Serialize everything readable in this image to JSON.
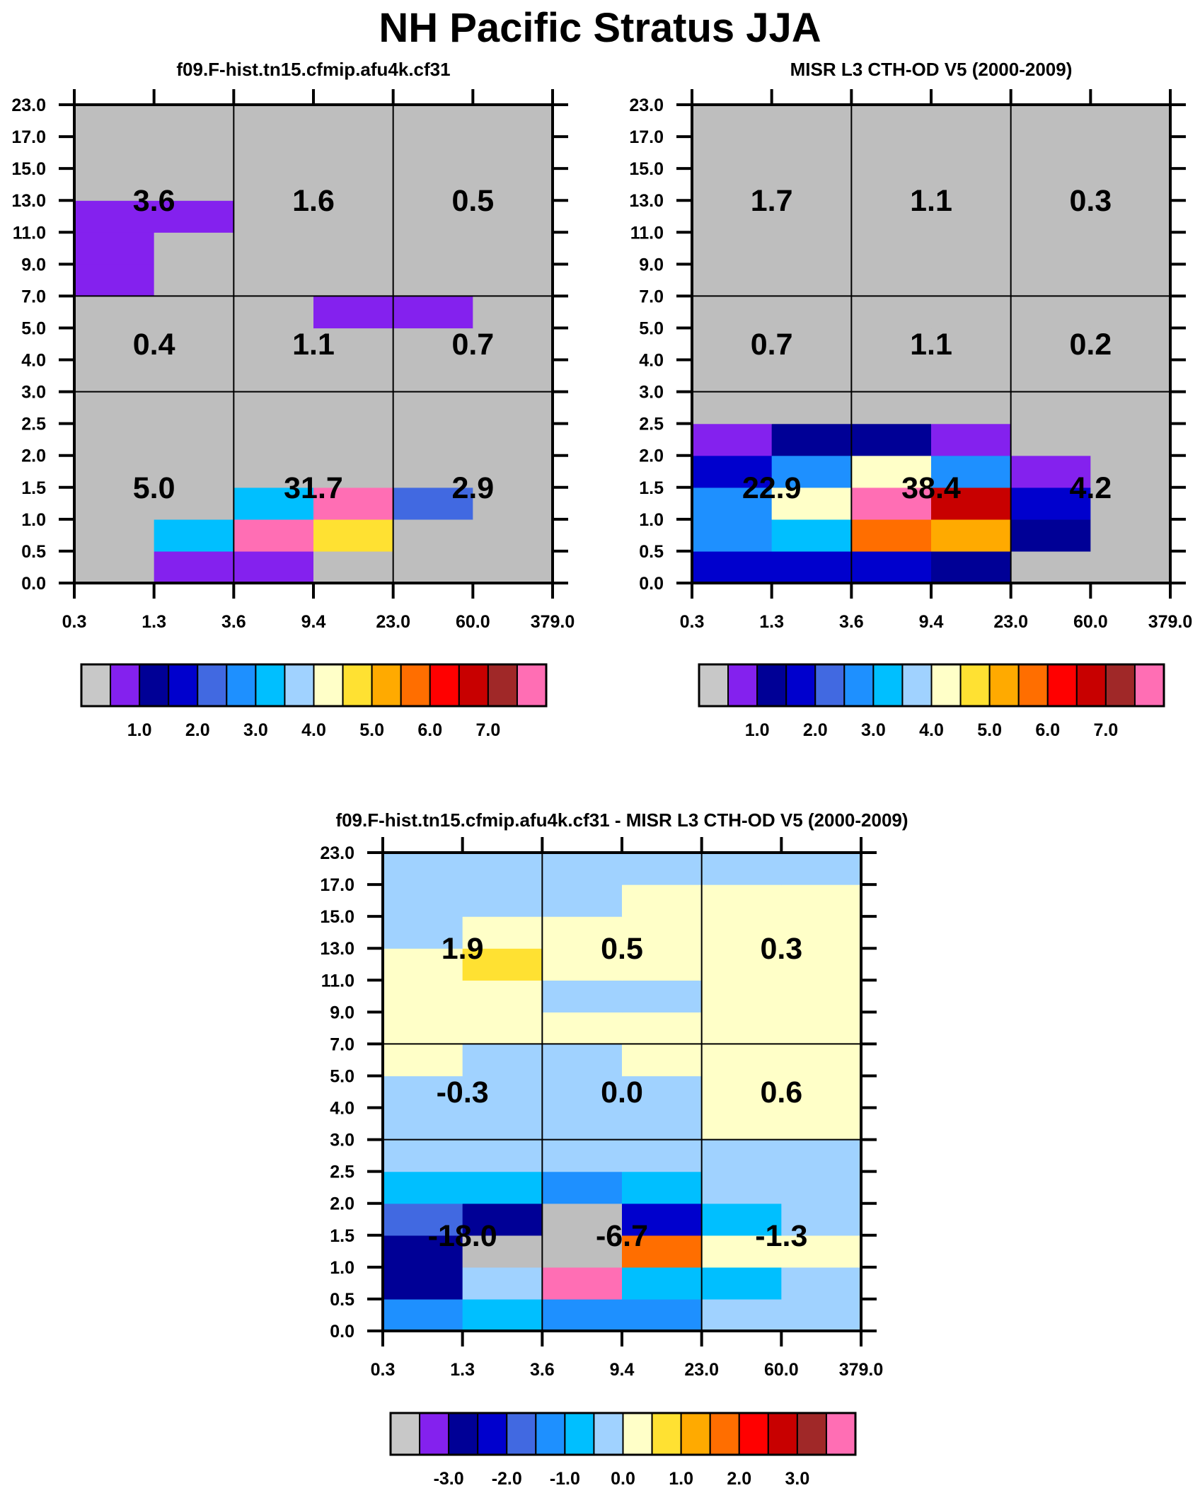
{
  "title": "NH Pacific Stratus JJA",
  "palette": [
    "#bebebe",
    "#8421ee",
    "#000096",
    "#0000cd",
    "#4169e1",
    "#1e90ff",
    "#00bfff",
    "#a0d2ff",
    "#ffffc8",
    "#ffe132",
    "#ffaa00",
    "#ff6e00",
    "#ff0000",
    "#c80000",
    "#a02828",
    "#ff6eb4"
  ],
  "colorbar_first_color": "#c8c8c8",
  "chart_data": [
    {
      "type": "heatmap",
      "title": "f09.F-hist.tn15.cfmip.afu4k.cf31",
      "x_ticks": [
        "0.3",
        "1.3",
        "3.6",
        "9.4",
        "23.0",
        "60.0",
        "379.0"
      ],
      "y_ticks": [
        "0.0",
        "0.5",
        "1.0",
        "1.5",
        "2.0",
        "2.5",
        "3.0",
        "4.0",
        "5.0",
        "7.0",
        "9.0",
        "11.0",
        "13.0",
        "15.0",
        "17.0",
        "23.0"
      ],
      "color_index_rows_bottom_up": [
        [
          0,
          1,
          1,
          0,
          0,
          0
        ],
        [
          0,
          6,
          15,
          9,
          0,
          0
        ],
        [
          0,
          0,
          6,
          15,
          4,
          0
        ],
        [
          0,
          0,
          0,
          0,
          0,
          0
        ],
        [
          0,
          0,
          0,
          0,
          0,
          0
        ],
        [
          0,
          0,
          0,
          0,
          0,
          0
        ],
        [
          0,
          0,
          0,
          0,
          0,
          0
        ],
        [
          0,
          0,
          0,
          0,
          0,
          0
        ],
        [
          0,
          0,
          0,
          1,
          1,
          0
        ],
        [
          1,
          0,
          0,
          0,
          0,
          0
        ],
        [
          1,
          0,
          0,
          0,
          0,
          0
        ],
        [
          1,
          1,
          0,
          0,
          0,
          0
        ],
        [
          0,
          0,
          0,
          0,
          0,
          0
        ],
        [
          0,
          0,
          0,
          0,
          0,
          0
        ],
        [
          0,
          0,
          0,
          0,
          0,
          0
        ]
      ],
      "group_totals": {
        "high": [
          "3.6",
          "1.6",
          "0.5"
        ],
        "mid": [
          "0.4",
          "1.1",
          "0.7"
        ],
        "low": [
          "5.0",
          "31.7",
          "2.9"
        ]
      },
      "colorbar_labels": [
        "1.0",
        "2.0",
        "3.0",
        "4.0",
        "5.0",
        "6.0",
        "7.0"
      ]
    },
    {
      "type": "heatmap",
      "title": "MISR L3 CTH-OD V5 (2000-2009)",
      "x_ticks": [
        "0.3",
        "1.3",
        "3.6",
        "9.4",
        "23.0",
        "60.0",
        "379.0"
      ],
      "y_ticks": [
        "0.0",
        "0.5",
        "1.0",
        "1.5",
        "2.0",
        "2.5",
        "3.0",
        "4.0",
        "5.0",
        "7.0",
        "9.0",
        "11.0",
        "13.0",
        "15.0",
        "17.0",
        "23.0"
      ],
      "color_index_rows_bottom_up": [
        [
          3,
          3,
          3,
          2,
          0,
          0
        ],
        [
          5,
          6,
          11,
          10,
          2,
          0
        ],
        [
          5,
          8,
          15,
          13,
          3,
          0
        ],
        [
          3,
          5,
          8,
          5,
          1,
          0
        ],
        [
          1,
          2,
          2,
          1,
          0,
          0
        ],
        [
          0,
          0,
          0,
          0,
          0,
          0
        ],
        [
          0,
          0,
          0,
          0,
          0,
          0
        ],
        [
          0,
          0,
          0,
          0,
          0,
          0
        ],
        [
          0,
          0,
          0,
          0,
          0,
          0
        ],
        [
          0,
          0,
          0,
          0,
          0,
          0
        ],
        [
          0,
          0,
          0,
          0,
          0,
          0
        ],
        [
          0,
          0,
          0,
          0,
          0,
          0
        ],
        [
          0,
          0,
          0,
          0,
          0,
          0
        ],
        [
          0,
          0,
          0,
          0,
          0,
          0
        ],
        [
          0,
          0,
          0,
          0,
          0,
          0
        ]
      ],
      "group_totals": {
        "high": [
          "1.7",
          "1.1",
          "0.3"
        ],
        "mid": [
          "0.7",
          "1.1",
          "0.2"
        ],
        "low": [
          "22.9",
          "38.4",
          "4.2"
        ]
      },
      "colorbar_labels": [
        "1.0",
        "2.0",
        "3.0",
        "4.0",
        "5.0",
        "6.0",
        "7.0"
      ]
    },
    {
      "type": "heatmap",
      "title": "f09.F-hist.tn15.cfmip.afu4k.cf31 - MISR L3 CTH-OD V5 (2000-2009)",
      "x_ticks": [
        "0.3",
        "1.3",
        "3.6",
        "9.4",
        "23.0",
        "60.0",
        "379.0"
      ],
      "y_ticks": [
        "0.0",
        "0.5",
        "1.0",
        "1.5",
        "2.0",
        "2.5",
        "3.0",
        "4.0",
        "5.0",
        "7.0",
        "9.0",
        "11.0",
        "13.0",
        "15.0",
        "17.0",
        "23.0"
      ],
      "color_index_rows_bottom_up": [
        [
          5,
          6,
          5,
          5,
          7,
          7
        ],
        [
          2,
          7,
          15,
          6,
          6,
          7
        ],
        [
          2,
          0,
          0,
          11,
          8,
          8
        ],
        [
          4,
          2,
          0,
          3,
          6,
          7
        ],
        [
          6,
          6,
          5,
          6,
          7,
          7
        ],
        [
          7,
          7,
          7,
          7,
          7,
          7
        ],
        [
          7,
          7,
          7,
          7,
          8,
          8
        ],
        [
          7,
          7,
          7,
          7,
          8,
          8
        ],
        [
          8,
          7,
          7,
          8,
          8,
          8
        ],
        [
          8,
          8,
          8,
          8,
          8,
          8
        ],
        [
          8,
          8,
          7,
          7,
          8,
          8
        ],
        [
          8,
          9,
          8,
          8,
          8,
          8
        ],
        [
          7,
          8,
          8,
          8,
          8,
          8
        ],
        [
          7,
          7,
          7,
          8,
          8,
          8
        ],
        [
          7,
          7,
          7,
          7,
          7,
          7
        ]
      ],
      "group_totals": {
        "high": [
          "1.9",
          "0.5",
          "0.3"
        ],
        "mid": [
          "-0.3",
          "0.0",
          "0.6"
        ],
        "low": [
          "-18.0",
          "-6.7",
          "-1.3"
        ]
      },
      "colorbar_labels": [
        "-3.0",
        "-2.0",
        "-1.0",
        "0.0",
        "1.0",
        "2.0",
        "3.0"
      ]
    }
  ]
}
